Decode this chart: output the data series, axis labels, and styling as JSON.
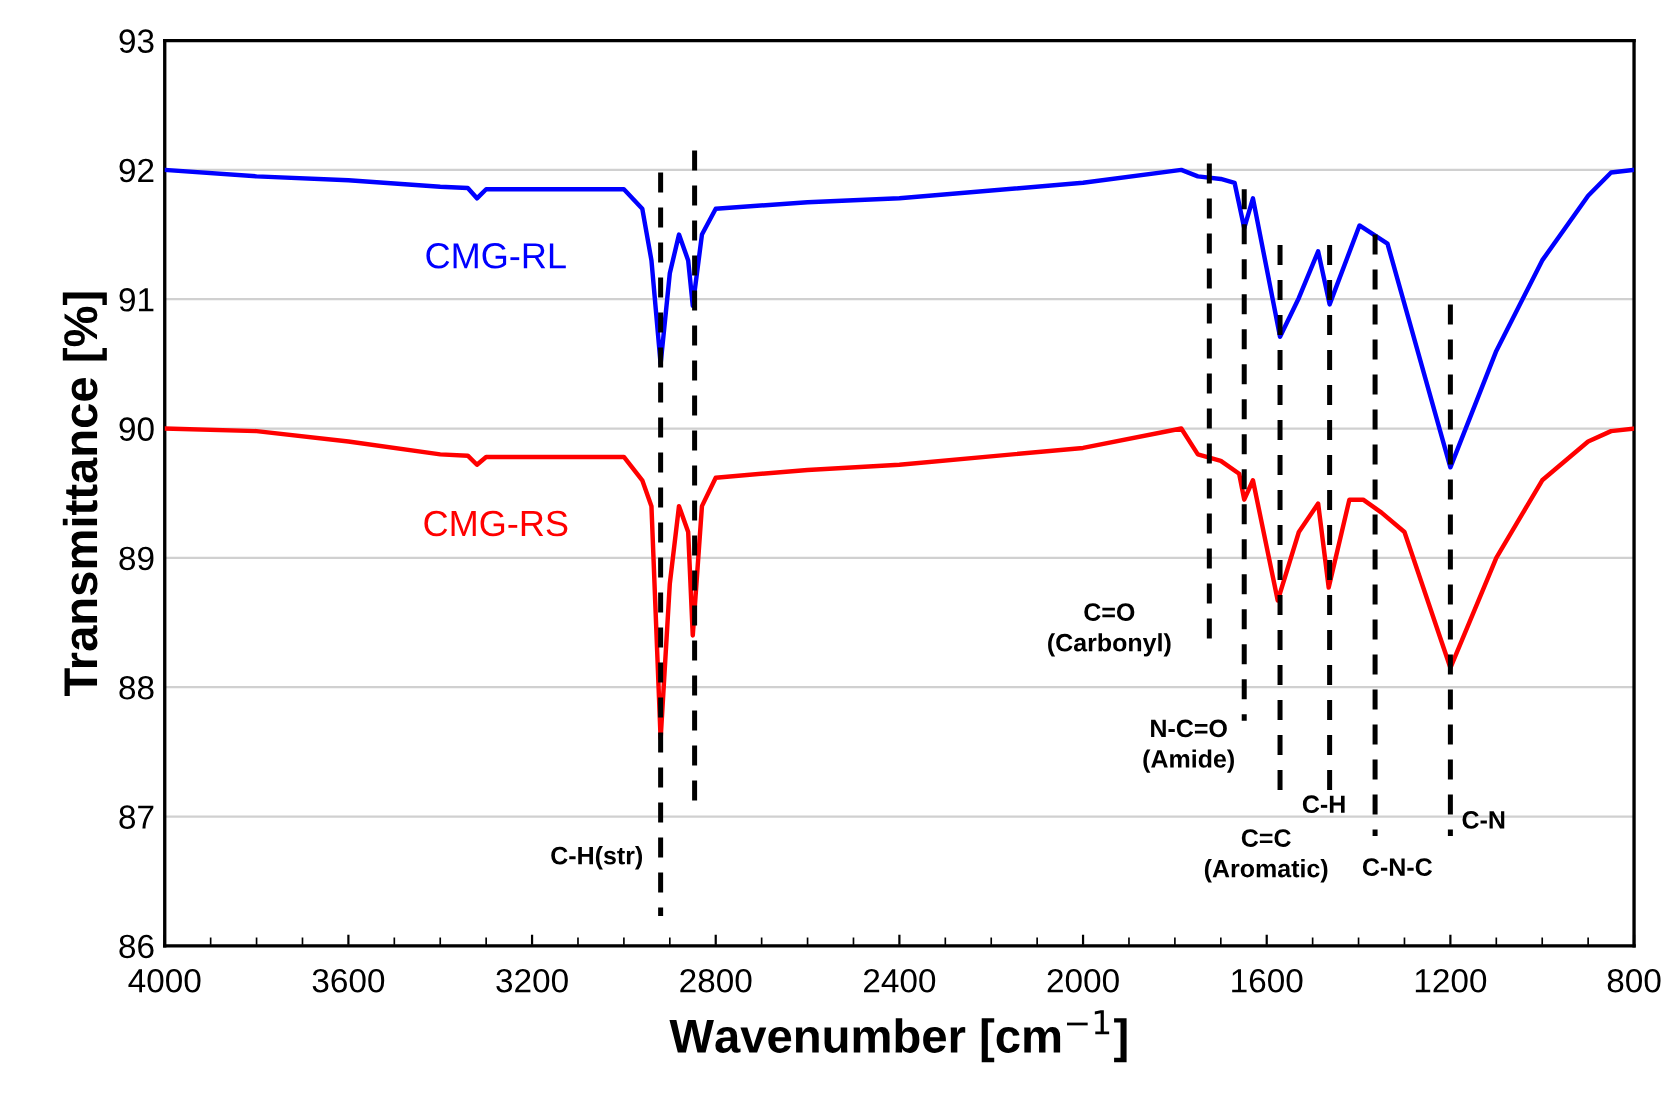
{
  "chart_data": {
    "type": "line",
    "xlabel": "Wavenumber [cm$^{−1}$]",
    "ylabel": "Transmittance [%]",
    "xlim": [
      4000,
      800
    ],
    "xticks": [
      4000,
      3600,
      3200,
      2800,
      2400,
      2000,
      1600,
      1200,
      800
    ],
    "ylim": [
      86,
      93
    ],
    "yticks": [
      86,
      87,
      88,
      89,
      90,
      91,
      92,
      93
    ],
    "grid": "y",
    "legend": false,
    "marker": "none",
    "line_style": "solid",
    "series": [
      {
        "name": "CMG-RL",
        "color": "#0000ff",
        "x": [
          4000,
          3800,
          3600,
          3400,
          3340,
          3320,
          3300,
          3000,
          2960,
          2940,
          2920,
          2900,
          2880,
          2860,
          2850,
          2830,
          2800,
          2600,
          2400,
          2000,
          1786,
          1750,
          1700,
          1670,
          1649,
          1630,
          1571,
          1530,
          1488,
          1463,
          1398,
          1337,
          1200,
          1100,
          1000,
          900,
          850,
          800
        ],
        "values": [
          92.0,
          91.95,
          91.92,
          91.87,
          91.86,
          91.78,
          91.85,
          91.85,
          91.7,
          91.3,
          90.5,
          91.2,
          91.5,
          91.3,
          90.95,
          91.5,
          91.7,
          91.75,
          91.78,
          91.9,
          92.0,
          91.95,
          91.93,
          91.9,
          91.55,
          91.78,
          90.71,
          91.01,
          91.37,
          90.96,
          91.57,
          91.43,
          89.7,
          90.6,
          91.3,
          91.8,
          91.98,
          92.0
        ]
      },
      {
        "name": "CMG-RS",
        "color": "#ff0000",
        "x": [
          4000,
          3800,
          3600,
          3400,
          3340,
          3320,
          3300,
          3000,
          2960,
          2940,
          2920,
          2900,
          2880,
          2860,
          2850,
          2830,
          2800,
          2600,
          2400,
          2000,
          1786,
          1750,
          1700,
          1660,
          1649,
          1630,
          1576,
          1530,
          1488,
          1465,
          1420,
          1390,
          1350,
          1300,
          1200,
          1100,
          1000,
          900,
          850,
          800
        ],
        "values": [
          90.0,
          89.98,
          89.9,
          89.8,
          89.79,
          89.72,
          89.78,
          89.78,
          89.6,
          89.4,
          87.6,
          88.8,
          89.4,
          89.2,
          88.4,
          89.4,
          89.62,
          89.68,
          89.72,
          89.85,
          90.0,
          89.8,
          89.75,
          89.65,
          89.45,
          89.6,
          88.67,
          89.2,
          89.42,
          88.77,
          89.45,
          89.45,
          89.35,
          89.2,
          88.15,
          89.0,
          89.6,
          89.9,
          89.98,
          90.0
        ]
      },
      {
        "type": "line",
        "line_style": "dashed",
        "color": "#000000",
        "x": [
          2920,
          2920
        ],
        "values": [
          91.98,
          86.23
        ]
      },
      {
        "type": "line",
        "line_style": "dashed",
        "color": "#000000",
        "x": [
          2846,
          2846
        ],
        "values": [
          92.15,
          87.1
        ]
      },
      {
        "type": "line",
        "line_style": "dashed",
        "color": "#000000",
        "x": [
          1725,
          1725
        ],
        "values": [
          92.05,
          88.36
        ]
      },
      {
        "type": "line",
        "line_style": "dashed",
        "color": "#000000",
        "x": [
          1649,
          1649
        ],
        "values": [
          91.85,
          87.74
        ]
      },
      {
        "type": "line",
        "line_style": "dashed",
        "color": "#000000",
        "x": [
          1571,
          1571
        ],
        "values": [
          91.42,
          87.15
        ]
      },
      {
        "type": "line",
        "line_style": "dashed",
        "color": "#000000",
        "x": [
          1463,
          1463
        ],
        "values": [
          91.42,
          87.1
        ]
      },
      {
        "type": "line",
        "line_style": "dashed",
        "color": "#000000",
        "x": [
          1364,
          1364
        ],
        "values": [
          91.5,
          86.85
        ]
      },
      {
        "type": "line",
        "line_style": "dashed",
        "color": "#000000",
        "x": [
          1200,
          1200
        ],
        "values": [
          90.96,
          86.85
        ]
      }
    ],
    "annotations": [
      {
        "text": "C-H(str)",
        "x": 2920,
        "y": 86.23
      },
      {
        "text": "C=O\n(Carbonyl)",
        "x": 1725,
        "y": 88.36
      },
      {
        "text": "N-C=O\n(Amide)",
        "x": 1649,
        "y": 87.74
      },
      {
        "text": "C=C\n(Aromatic)",
        "x": 1571,
        "y": 87.15
      },
      {
        "text": "C-H",
        "x": 1463,
        "y": 87.1
      },
      {
        "text": "C-N-C",
        "x": 1364,
        "y": 86.85
      },
      {
        "text": "C-N",
        "x": 1200,
        "y": 86.85
      }
    ]
  }
}
